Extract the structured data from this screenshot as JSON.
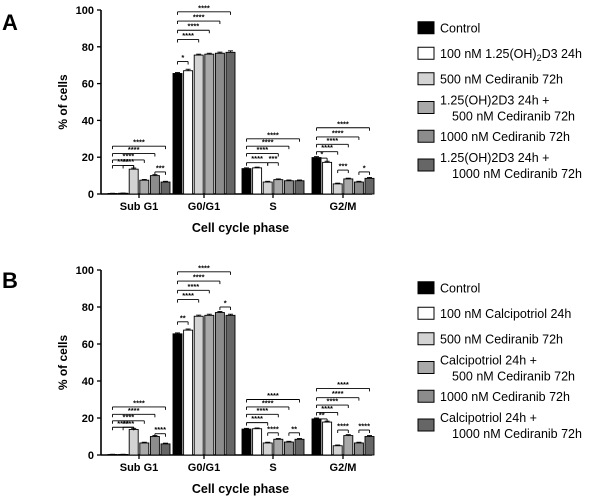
{
  "chart_data": [
    {
      "panel_label": "A",
      "type": "bar",
      "xlabel": "Cell cycle phase",
      "ylabel": "% of cells",
      "ylim": [
        0,
        100
      ],
      "yticks": [
        "0",
        "20",
        "40",
        "60",
        "80",
        "100"
      ],
      "categories": [
        "Sub G1",
        "G0/G1",
        "S",
        "G2/M"
      ],
      "series": [
        {
          "name": "Control",
          "color": "#000000",
          "values": [
            0.3,
            65.5,
            13.8,
            19.8
          ],
          "errors": [
            0.1,
            0.5,
            0.4,
            0.5
          ]
        },
        {
          "name": "100 nM 1.25(OH)2D3 24h",
          "color": "#ffffff",
          "values": [
            0.4,
            67.0,
            14.2,
            17.2
          ],
          "errors": [
            0.1,
            0.8,
            0.4,
            0.6
          ]
        },
        {
          "name": "500 nM Cediranib 72h",
          "color": "#d3d3d3",
          "values": [
            13.5,
            75.5,
            6.5,
            5.5
          ],
          "errors": [
            0.6,
            0.5,
            0.4,
            0.4
          ]
        },
        {
          "name": "1.25(OH)2D3 24h + 500 nM Cediranib 72h",
          "color": "#a9a9a9",
          "values": [
            7.5,
            76.0,
            7.8,
            8.2
          ],
          "errors": [
            0.4,
            0.5,
            0.4,
            0.4
          ]
        },
        {
          "name": "1000 nM Cediranib 72h",
          "color": "#8c8c8c",
          "values": [
            10.0,
            76.5,
            7.2,
            6.5
          ],
          "errors": [
            0.5,
            0.6,
            0.4,
            0.4
          ]
        },
        {
          "name": "1.25(OH)2D3 24h + 1000 nM Cediranib 72h",
          "color": "#666666",
          "values": [
            6.5,
            77.0,
            7.2,
            8.5
          ],
          "errors": [
            0.4,
            0.8,
            0.4,
            0.5
          ]
        }
      ],
      "legend": [
        {
          "line1": "Control",
          "line2": ""
        },
        {
          "line1": "100 nM 1.25(OH)",
          "sub": "2",
          "after": "D3 24h",
          "line2": ""
        },
        {
          "line1": "500 nM Cediranib 72h",
          "line2": ""
        },
        {
          "line1": "1.25(OH)2D3 24h +",
          "line2": "500 nM Cediranib 72h"
        },
        {
          "line1": "1000 nM Cediranib 72h",
          "line2": ""
        },
        {
          "line1": "1.25(OH)2D3 24h +",
          "line2": "1000 nM Cediranib 72h"
        }
      ],
      "significance": [
        {
          "cat": 0,
          "from": 0,
          "to": 5,
          "y": 26,
          "label": "****"
        },
        {
          "cat": 0,
          "from": 0,
          "to": 4,
          "y": 22,
          "label": "****"
        },
        {
          "cat": 0,
          "from": 0,
          "to": 3,
          "y": 18.5,
          "label": "****"
        },
        {
          "cat": 0,
          "from": 0,
          "to": 2,
          "y": 15.5,
          "label": "****"
        },
        {
          "cat": 0,
          "from": 1,
          "to": 2,
          "y": 15.5,
          "label": "****"
        },
        {
          "cat": 0,
          "from": 4,
          "to": 5,
          "y": 12,
          "label": "***"
        },
        {
          "cat": 1,
          "from": 0,
          "to": 5,
          "y": 99,
          "label": "****"
        },
        {
          "cat": 1,
          "from": 0,
          "to": 4,
          "y": 94,
          "label": "****"
        },
        {
          "cat": 1,
          "from": 0,
          "to": 3,
          "y": 89,
          "label": "****"
        },
        {
          "cat": 1,
          "from": 0,
          "to": 2,
          "y": 84,
          "label": "****"
        },
        {
          "cat": 1,
          "from": 0,
          "to": 1,
          "y": 72,
          "label": "*"
        },
        {
          "cat": 2,
          "from": 0,
          "to": 5,
          "y": 30,
          "label": "****"
        },
        {
          "cat": 2,
          "from": 0,
          "to": 4,
          "y": 26,
          "label": "****"
        },
        {
          "cat": 2,
          "from": 0,
          "to": 3,
          "y": 22,
          "label": "****"
        },
        {
          "cat": 2,
          "from": 0,
          "to": 2,
          "y": 17,
          "label": "****"
        },
        {
          "cat": 2,
          "from": 2,
          "to": 3,
          "y": 17,
          "label": "***"
        },
        {
          "cat": 3,
          "from": 0,
          "to": 5,
          "y": 36,
          "label": "****"
        },
        {
          "cat": 3,
          "from": 0,
          "to": 4,
          "y": 31,
          "label": "****"
        },
        {
          "cat": 3,
          "from": 0,
          "to": 3,
          "y": 27,
          "label": "****"
        },
        {
          "cat": 3,
          "from": 0,
          "to": 2,
          "y": 23,
          "label": "****"
        },
        {
          "cat": 3,
          "from": 0,
          "to": 1,
          "y": 19.5,
          "label": "*"
        },
        {
          "cat": 3,
          "from": 2,
          "to": 3,
          "y": 13,
          "label": "***"
        },
        {
          "cat": 3,
          "from": 4,
          "to": 5,
          "y": 12,
          "label": "*"
        }
      ]
    },
    {
      "panel_label": "B",
      "type": "bar",
      "xlabel": "Cell cycle phase",
      "ylabel": "% of cells",
      "ylim": [
        0,
        100
      ],
      "yticks": [
        "0",
        "20",
        "40",
        "60",
        "80",
        "100"
      ],
      "categories": [
        "Sub G1",
        "G0/G1",
        "S",
        "G2/M"
      ],
      "series": [
        {
          "name": "Control",
          "color": "#000000",
          "values": [
            0.3,
            65.5,
            14.0,
            19.5
          ],
          "errors": [
            0.1,
            0.5,
            0.4,
            0.5
          ]
        },
        {
          "name": "100 nM Calcipotriol 24h",
          "color": "#ffffff",
          "values": [
            0.3,
            67.5,
            14.2,
            17.8
          ],
          "errors": [
            0.1,
            0.6,
            0.4,
            0.5
          ]
        },
        {
          "name": "500 nM Cediranib 72h",
          "color": "#d3d3d3",
          "values": [
            13.8,
            75.0,
            6.5,
            5.0
          ],
          "errors": [
            0.6,
            0.6,
            0.4,
            0.4
          ]
        },
        {
          "name": "Calcipotriol 24h + 500 nM Cediranib 72h",
          "color": "#a9a9a9",
          "values": [
            6.5,
            75.5,
            8.5,
            10.5
          ],
          "errors": [
            0.4,
            0.6,
            0.4,
            0.5
          ]
        },
        {
          "name": "1000 nM Cediranib 72h",
          "color": "#8c8c8c",
          "values": [
            10.0,
            77.0,
            7.0,
            6.5
          ],
          "errors": [
            0.5,
            0.6,
            0.4,
            0.4
          ]
        },
        {
          "name": "Calcipotriol 24h + 1000 nM Cediranib 72h",
          "color": "#666666",
          "values": [
            6.0,
            75.5,
            8.5,
            10.0
          ],
          "errors": [
            0.4,
            0.6,
            0.4,
            0.5
          ]
        }
      ],
      "legend": [
        {
          "line1": "Control",
          "line2": ""
        },
        {
          "line1": "100 nM Calcipotriol 24h",
          "line2": ""
        },
        {
          "line1": "500 nM Cediranib 72h",
          "line2": ""
        },
        {
          "line1": "Calcipotriol 24h +",
          "line2": "500 nM Cediranib 72h"
        },
        {
          "line1": "1000 nM Cediranib 72h",
          "line2": ""
        },
        {
          "line1": "Calcipotriol 24h +",
          "line2": "1000 nM Cediranib 72h"
        }
      ],
      "significance": [
        {
          "cat": 0,
          "from": 0,
          "to": 5,
          "y": 26,
          "label": "****"
        },
        {
          "cat": 0,
          "from": 0,
          "to": 4,
          "y": 22,
          "label": "****"
        },
        {
          "cat": 0,
          "from": 0,
          "to": 3,
          "y": 18.5,
          "label": "****"
        },
        {
          "cat": 0,
          "from": 0,
          "to": 2,
          "y": 15,
          "label": "****"
        },
        {
          "cat": 0,
          "from": 1,
          "to": 2,
          "y": 15,
          "label": "****"
        },
        {
          "cat": 0,
          "from": 4,
          "to": 5,
          "y": 11.5,
          "label": "****"
        },
        {
          "cat": 1,
          "from": 0,
          "to": 5,
          "y": 99,
          "label": "****"
        },
        {
          "cat": 1,
          "from": 0,
          "to": 4,
          "y": 94,
          "label": "****"
        },
        {
          "cat": 1,
          "from": 0,
          "to": 3,
          "y": 89,
          "label": "****"
        },
        {
          "cat": 1,
          "from": 0,
          "to": 2,
          "y": 84,
          "label": "****"
        },
        {
          "cat": 1,
          "from": 0,
          "to": 1,
          "y": 72,
          "label": "**"
        },
        {
          "cat": 1,
          "from": 4,
          "to": 5,
          "y": 80,
          "label": "*"
        },
        {
          "cat": 2,
          "from": 0,
          "to": 5,
          "y": 30,
          "label": "****"
        },
        {
          "cat": 2,
          "from": 0,
          "to": 4,
          "y": 26,
          "label": "****"
        },
        {
          "cat": 2,
          "from": 0,
          "to": 3,
          "y": 22,
          "label": "****"
        },
        {
          "cat": 2,
          "from": 0,
          "to": 2,
          "y": 17.5,
          "label": "****"
        },
        {
          "cat": 2,
          "from": 2,
          "to": 3,
          "y": 12,
          "label": "****"
        },
        {
          "cat": 2,
          "from": 4,
          "to": 5,
          "y": 12,
          "label": "**"
        },
        {
          "cat": 3,
          "from": 0,
          "to": 5,
          "y": 36,
          "label": "****"
        },
        {
          "cat": 3,
          "from": 0,
          "to": 4,
          "y": 31,
          "label": "****"
        },
        {
          "cat": 3,
          "from": 0,
          "to": 3,
          "y": 27,
          "label": "****"
        },
        {
          "cat": 3,
          "from": 0,
          "to": 2,
          "y": 23,
          "label": "****"
        },
        {
          "cat": 3,
          "from": 0,
          "to": 1,
          "y": 19.5,
          "label": "**"
        },
        {
          "cat": 3,
          "from": 2,
          "to": 3,
          "y": 13.5,
          "label": "****"
        },
        {
          "cat": 3,
          "from": 4,
          "to": 5,
          "y": 13.5,
          "label": "****"
        }
      ]
    }
  ]
}
